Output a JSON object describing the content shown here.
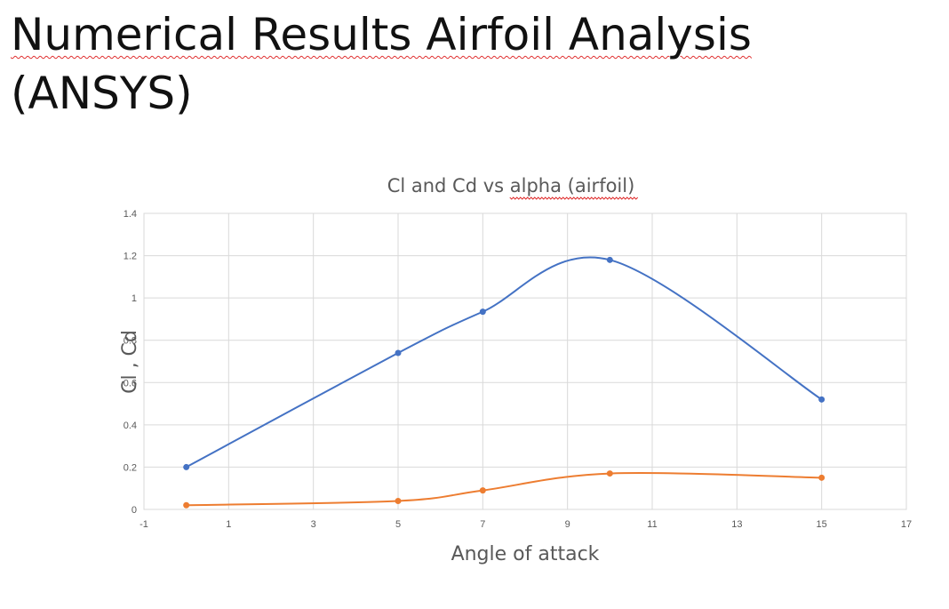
{
  "slide": {
    "title_line1": "Numerical Results Airfoil Analysis",
    "title_line2": "(ANSYS)"
  },
  "chart_data": {
    "type": "line",
    "smooth": true,
    "title": "Cl and Cd vs alpha (airfoil)",
    "xlabel": "Angle of attack",
    "ylabel": "Cl , Cd",
    "xlim": [
      -1,
      17
    ],
    "ylim": [
      0,
      1.4
    ],
    "xticks": [
      -1,
      1,
      3,
      5,
      7,
      9,
      11,
      13,
      15,
      17
    ],
    "yticks": [
      0,
      0.2,
      0.4,
      0.6,
      0.8,
      1,
      1.2,
      1.4
    ],
    "grid": true,
    "legend": "none",
    "series": [
      {
        "color": "#4472C4",
        "x": [
          0,
          5,
          7,
          10,
          15
        ],
        "y": [
          0.2,
          0.74,
          0.935,
          1.18,
          0.52
        ]
      },
      {
        "color": "#ED7D31",
        "x": [
          0,
          5,
          7,
          10,
          15
        ],
        "y": [
          0.02,
          0.04,
          0.09,
          0.17,
          0.15
        ]
      }
    ]
  }
}
